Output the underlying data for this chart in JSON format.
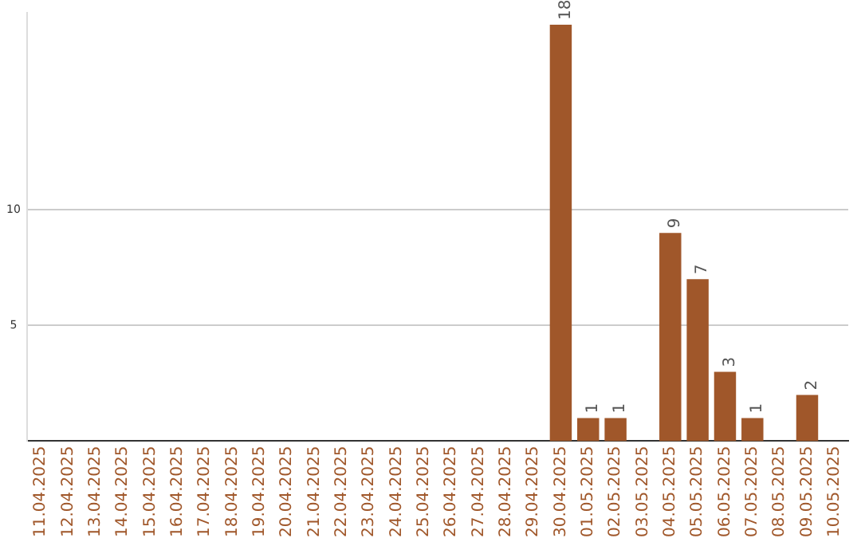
{
  "chart_data": {
    "type": "bar",
    "categories": [
      "11.04.2025",
      "12.04.2025",
      "13.04.2025",
      "14.04.2025",
      "15.04.2025",
      "16.04.2025",
      "17.04.2025",
      "18.04.2025",
      "19.04.2025",
      "20.04.2025",
      "21.04.2025",
      "22.04.2025",
      "23.04.2025",
      "24.04.2025",
      "25.04.2025",
      "26.04.2025",
      "27.04.2025",
      "28.04.2025",
      "29.04.2025",
      "30.04.2025",
      "01.05.2025",
      "02.05.2025",
      "03.05.2025",
      "04.05.2025",
      "05.05.2025",
      "06.05.2025",
      "07.05.2025",
      "08.05.2025",
      "09.05.2025",
      "10.05.2025"
    ],
    "values": [
      0,
      0,
      0,
      0,
      0,
      0,
      0,
      0,
      0,
      0,
      0,
      0,
      0,
      0,
      0,
      0,
      0,
      0,
      0,
      18,
      1,
      1,
      0,
      9,
      7,
      3,
      1,
      0,
      2,
      0
    ],
    "value_labels": [
      null,
      null,
      null,
      null,
      null,
      null,
      null,
      null,
      null,
      null,
      null,
      null,
      null,
      null,
      null,
      null,
      null,
      null,
      null,
      "18",
      "1",
      "1",
      null,
      "9",
      "7",
      "3",
      "1",
      null,
      "2",
      null
    ],
    "color": "#a0572a",
    "ylim": [
      0,
      18.5
    ],
    "yticks": [
      5,
      10
    ],
    "grid": "y",
    "legend": false
  }
}
